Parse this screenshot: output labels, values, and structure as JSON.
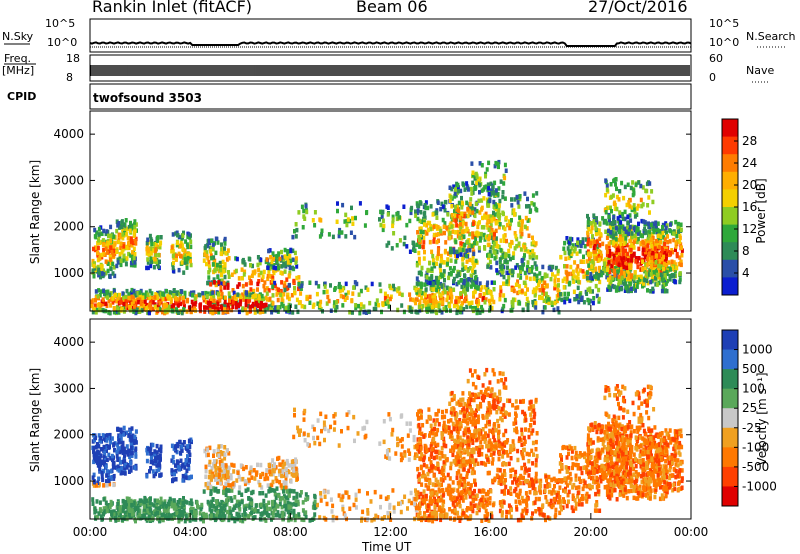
{
  "header": {
    "station": "Rankin Inlet (fitACF)",
    "beam": "Beam 06",
    "date": "27/Oct/2016"
  },
  "noise_panel": {
    "left_label": "N.Sky",
    "right_label": "N.Search",
    "left_ticks": [
      "10^5",
      "10^0"
    ],
    "right_ticks": [
      "10^5",
      "10^0"
    ]
  },
  "freq_panel": {
    "left_label_top": "Freq.",
    "left_label_bottom": "[MHz]",
    "right_label": "Nave",
    "left_ticks": [
      "18",
      "8"
    ],
    "right_ticks": [
      "60",
      "0"
    ]
  },
  "cpid_panel": {
    "label": "CPID",
    "value": "twofsound 3503"
  },
  "chart_data": [
    {
      "type": "heatmap",
      "name": "power",
      "ylabel": "Slant Range [km]",
      "ylim": [
        180,
        4500
      ],
      "yticks": [
        1000,
        2000,
        3000,
        4000
      ],
      "xlim": [
        0,
        24
      ],
      "colorbar": {
        "label": "Power [dB]",
        "ticks": [
          "28",
          "24",
          "20",
          "16",
          "12",
          "8",
          "4"
        ],
        "colors": [
          "#e00000",
          "#ff3a00",
          "#ff7c00",
          "#ffae00",
          "#f4d000",
          "#8fcc22",
          "#2fa83a",
          "#2e8b57",
          "#2a4fa8",
          "#0b1ecf"
        ]
      }
    },
    {
      "type": "heatmap",
      "name": "velocity",
      "ylabel": "Slant Range [km]",
      "ylim": [
        180,
        4500
      ],
      "yticks": [
        1000,
        2000,
        3000,
        4000
      ],
      "xlim": [
        0,
        24
      ],
      "colorbar": {
        "label": "Velocity [m s⁻¹]",
        "ticks": [
          "1000",
          "500",
          "100",
          "25",
          "-25",
          "-100",
          "-500",
          "-1000"
        ],
        "colors": [
          "#1e3fb5",
          "#2f6fcf",
          "#2e8b57",
          "#5aa85a",
          "#c8c8c8",
          "#f0a020",
          "#ff7800",
          "#ff4000",
          "#e00000"
        ]
      }
    }
  ],
  "x_axis": {
    "label": "Time UT",
    "ticks": [
      "00:00",
      "04:00",
      "08:00",
      "12:00",
      "16:00",
      "20:00",
      "00:00"
    ]
  }
}
